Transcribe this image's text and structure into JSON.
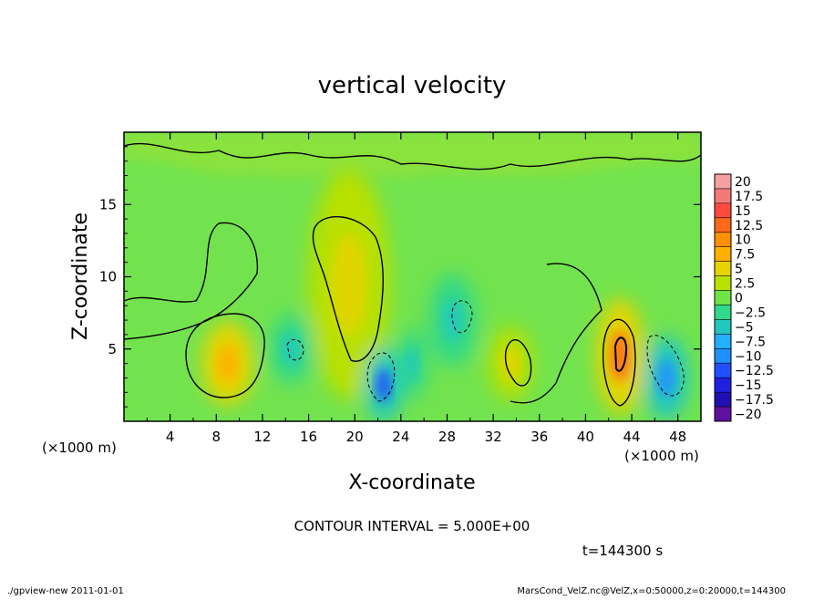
{
  "chart_data": {
    "type": "heatmap",
    "title": "vertical velocity",
    "xlabel": "X-coordinate",
    "ylabel": "Z-coordinate",
    "x_unit": "(×1000 m)",
    "y_unit": "(×1000 m)",
    "xlim": [
      0,
      50
    ],
    "ylim": [
      0,
      20
    ],
    "x_ticks": [
      "4",
      "8",
      "12",
      "16",
      "20",
      "24",
      "28",
      "32",
      "36",
      "40",
      "44",
      "48"
    ],
    "y_ticks": [
      "5",
      "10",
      "15"
    ],
    "colorbar": {
      "labels": [
        "20",
        "17.5",
        "15",
        "12.5",
        "10",
        "7.5",
        "5",
        "2.5",
        "0",
        "-2.5",
        "-5",
        "-7.5",
        "-10",
        "-12.5",
        "-15",
        "-17.5",
        "-20"
      ],
      "colors": [
        "#f4a0a0",
        "#f47a7a",
        "#ff4a40",
        "#ff6a1a",
        "#ff9000",
        "#ffb000",
        "#e6d400",
        "#b8e000",
        "#6ee34a",
        "#30d88a",
        "#20c8c0",
        "#20b0ff",
        "#2090ff",
        "#2050ff",
        "#2020e0",
        "#2010b0",
        "#6010a0"
      ]
    },
    "features": [
      {
        "x": 9,
        "z": 4,
        "w": 1.4,
        "h": 1.8,
        "value": 7.5
      },
      {
        "x": 19.5,
        "z": 9.5,
        "w": 2.2,
        "h": 5,
        "value": 4
      },
      {
        "x": 33.5,
        "z": 4,
        "w": 1.2,
        "h": 1.6,
        "value": 6
      },
      {
        "x": 43,
        "z": 4.5,
        "w": 1.3,
        "h": 2.5,
        "value": 12
      },
      {
        "x": 47,
        "z": 3,
        "w": 1.2,
        "h": 1.8,
        "value": -10
      },
      {
        "x": 22.5,
        "z": 2.5,
        "w": 1.0,
        "h": 1.6,
        "value": -12
      },
      {
        "x": 14.5,
        "z": 5,
        "w": 1.2,
        "h": 1.5,
        "value": -5
      },
      {
        "x": 28.5,
        "z": 7,
        "w": 1.3,
        "h": 2.0,
        "value": -5
      },
      {
        "x": 25,
        "z": 4,
        "w": 0.8,
        "h": 1.5,
        "value": -4
      }
    ],
    "contour_interval": "CONTOUR INTERVAL = 5.000E+00",
    "time": "t=144300 s"
  },
  "footer": {
    "left": "./gpview-new   2011-01-01",
    "right": "MarsCond_VelZ.nc@VelZ,x=0:50000,z=0:20000,t=144300"
  }
}
